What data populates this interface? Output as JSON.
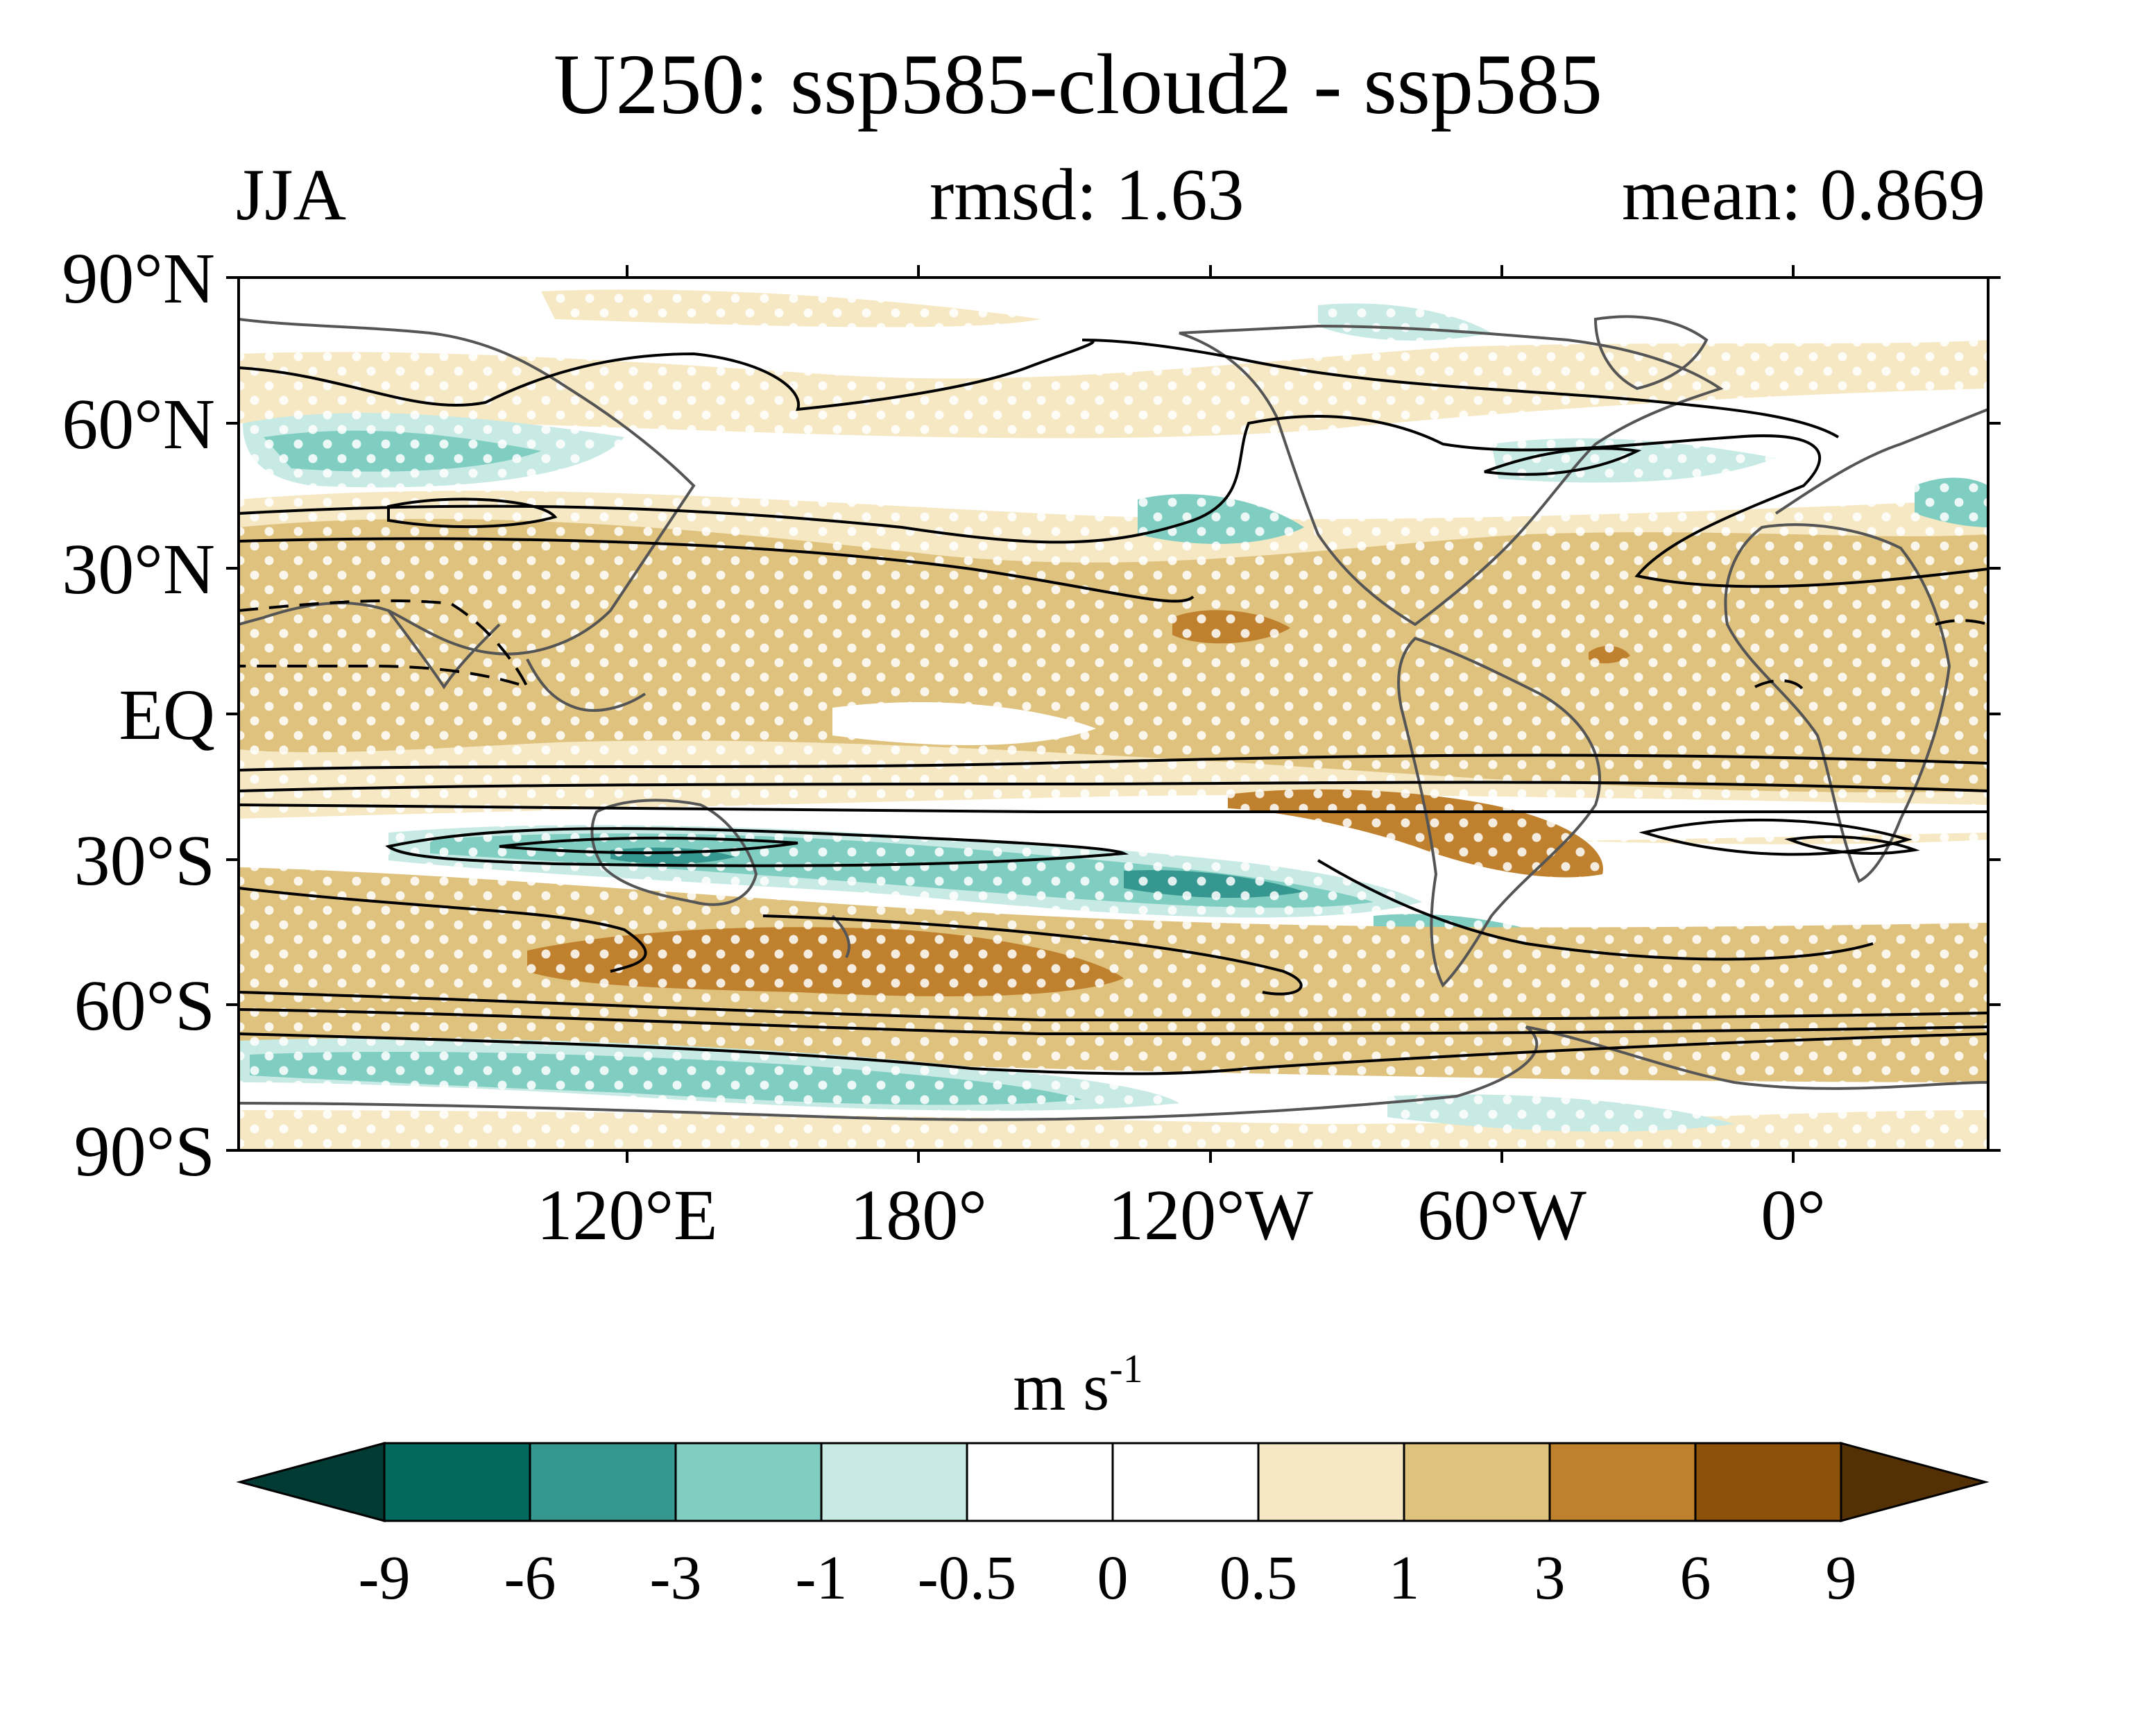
{
  "figure": {
    "title": "U250: ssp585-cloud2 - ssp585",
    "season": "JJA",
    "rmsd_text": "rmsd: 1.63",
    "mean_text": "mean: 0.869"
  },
  "map": {
    "lat_labels": [
      "90°N",
      "60°N",
      "30°N",
      "EQ",
      "30°S",
      "60°S",
      "90°S"
    ],
    "lat_values": [
      90,
      60,
      30,
      0,
      -30,
      -60,
      -90
    ],
    "lon_labels": [
      "120°E",
      "180°",
      "120°W",
      "60°W",
      "0°"
    ],
    "lon_values": [
      120,
      180,
      240,
      300,
      360
    ],
    "lon_range": [
      40,
      400
    ],
    "lat_range": [
      -90,
      90
    ],
    "stippling": "white dots mark significant differences",
    "contours": "black lines show climatological zonal wind; dashed lines negative"
  },
  "colorbar": {
    "units_base": "m s",
    "units_exp": "-1",
    "levels": [
      "-9",
      "-6",
      "-3",
      "-1",
      "-0.5",
      "0",
      "0.5",
      "1",
      "3",
      "6",
      "9"
    ],
    "colors": [
      "#013b33",
      "#02695f",
      "#35978f",
      "#80cdc1",
      "#c7eae5",
      "#ffffff",
      "#ffffff",
      "#f6e8c3",
      "#dfc27d",
      "#bf812d",
      "#8c510a",
      "#543005"
    ]
  }
}
